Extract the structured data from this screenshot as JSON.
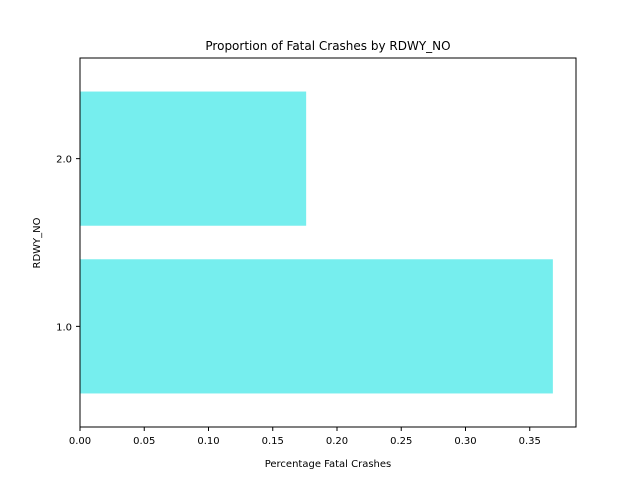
{
  "chart_data": {
    "type": "bar",
    "orientation": "horizontal",
    "title": "Proportion of Fatal Crashes by RDWY_NO",
    "xlabel": "Percentage Fatal Crashes",
    "ylabel": "RDWY_NO",
    "categories": [
      "1.0",
      "2.0"
    ],
    "values": [
      0.368,
      0.176
    ],
    "xlim": [
      0.0,
      0.386
    ],
    "xticks": [
      "0.00",
      "0.05",
      "0.10",
      "0.15",
      "0.20",
      "0.25",
      "0.30",
      "0.35"
    ],
    "grid": false,
    "legend": "none",
    "bar_color": "#76eeee"
  }
}
